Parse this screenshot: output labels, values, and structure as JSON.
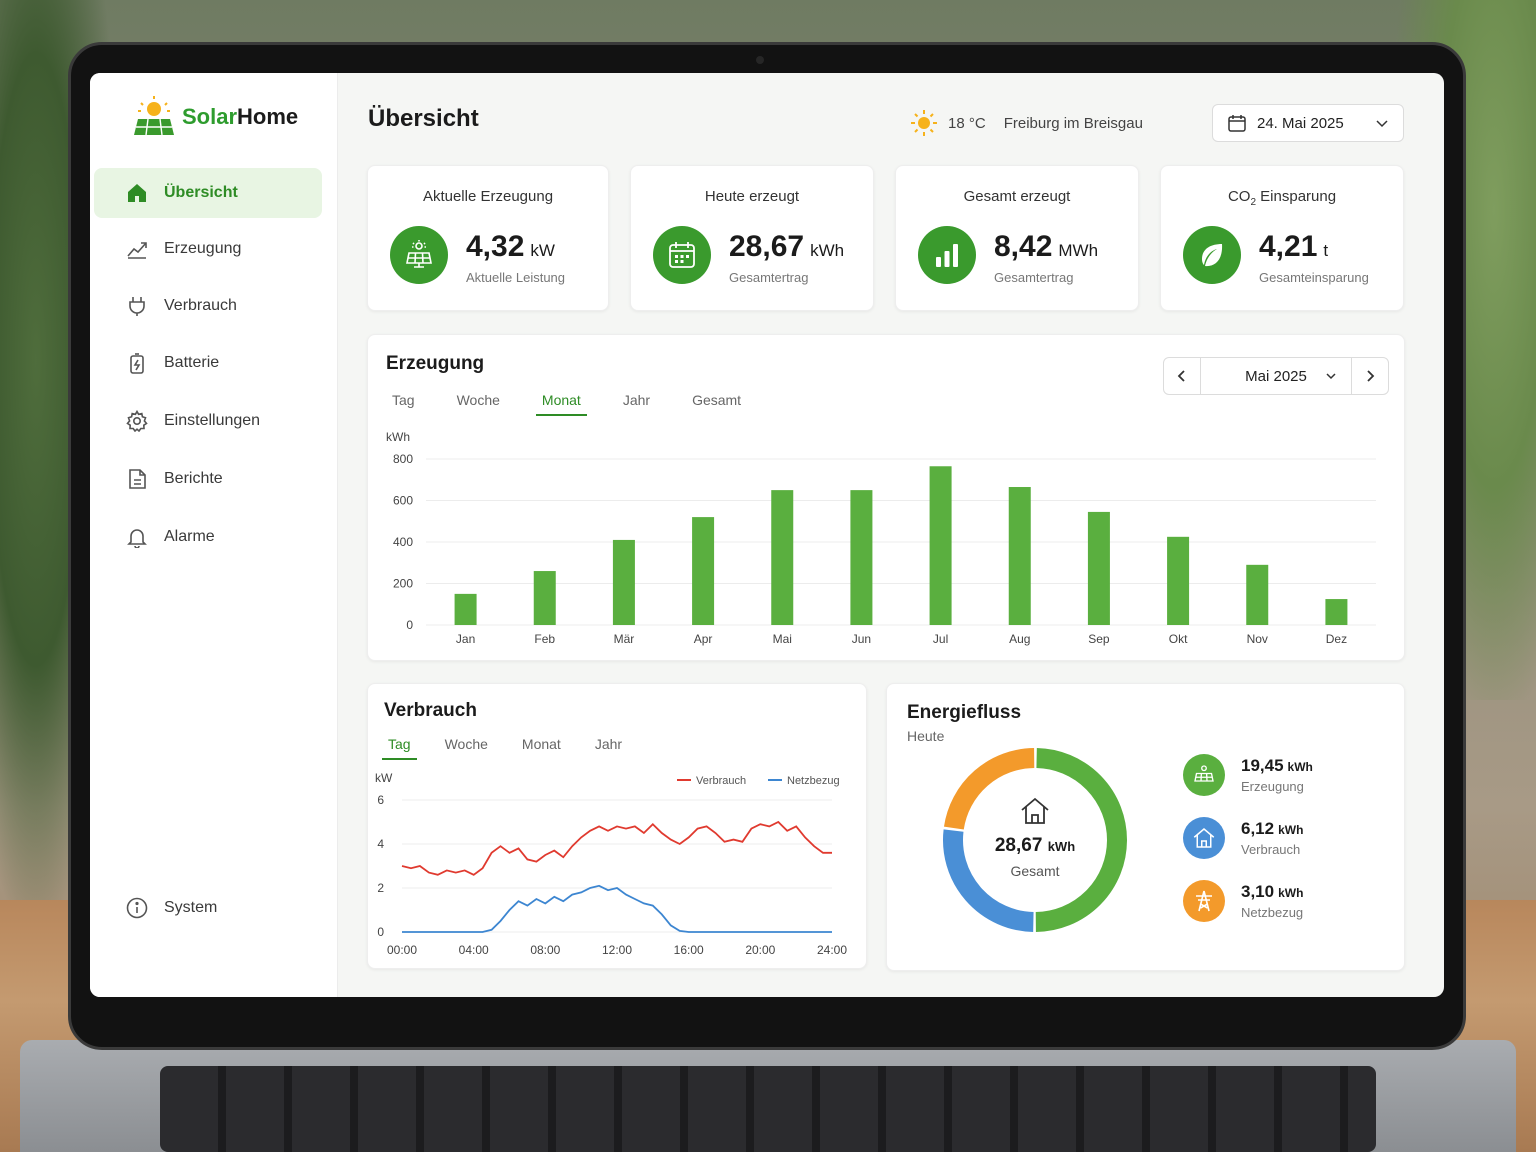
{
  "app": {
    "brand_a": "Solar",
    "brand_b": "Home"
  },
  "sidebar": {
    "items": [
      {
        "label": "Übersicht",
        "icon": "home-icon",
        "active": true
      },
      {
        "label": "Erzeugung",
        "icon": "chart-line-icon"
      },
      {
        "label": "Verbrauch",
        "icon": "plug-icon"
      },
      {
        "label": "Batterie",
        "icon": "battery-icon"
      },
      {
        "label": "Einstellungen",
        "icon": "gear-icon"
      },
      {
        "label": "Berichte",
        "icon": "document-icon"
      },
      {
        "label": "Alarme",
        "icon": "bell-icon"
      }
    ],
    "system_label": "System"
  },
  "header": {
    "title": "Übersicht",
    "temperature": "18 °C",
    "location": "Freiburg im Breisgau",
    "date": "24. Mai 2025"
  },
  "kpis": [
    {
      "title": "Aktuelle Erzeugung",
      "value": "4,32",
      "unit": "kW",
      "sub": "Aktuelle Leistung",
      "icon": "solar-panel-icon"
    },
    {
      "title": "Heute erzeugt",
      "value": "28,67",
      "unit": "kWh",
      "sub": "Gesamtertrag",
      "icon": "calendar-icon"
    },
    {
      "title": "Gesamt erzeugt",
      "value": "8,42",
      "unit": "MWh",
      "sub": "Gesamtertrag",
      "icon": "bar-chart-icon"
    },
    {
      "title_main": "CO",
      "title_sub": "2",
      "title_rest": " Einsparung",
      "value": "4,21",
      "unit": "t",
      "sub": "Gesamteinsparung",
      "icon": "leaf-icon"
    }
  ],
  "production": {
    "title": "Erzeugung",
    "tabs": [
      "Tag",
      "Woche",
      "Monat",
      "Jahr",
      "Gesamt"
    ],
    "active_tab": "Monat",
    "period": "Mai 2025"
  },
  "consumption": {
    "title": "Verbrauch",
    "tabs": [
      "Tag",
      "Woche",
      "Monat",
      "Jahr"
    ],
    "active_tab": "Tag"
  },
  "energyflow": {
    "title": "Energiefluss",
    "subtitle": "Heute",
    "center_value": "28,67",
    "center_unit": "kWh",
    "center_label": "Gesamt",
    "items": [
      {
        "value": "19,45",
        "unit": "kWh",
        "label": "Erzeugung",
        "color": "#5aaf3f",
        "icon": "solar-panel-icon",
        "share": 0.5
      },
      {
        "value": "6,12",
        "unit": "kWh",
        "label": "Verbrauch",
        "color": "#4a8fd6",
        "icon": "house-icon",
        "share": 0.27
      },
      {
        "value": "3,10",
        "unit": "kWh",
        "label": "Netzbezug",
        "color": "#f39a2b",
        "icon": "power-tower-icon",
        "share": 0.23
      }
    ]
  },
  "chart_data": [
    {
      "type": "bar",
      "ylabel": "kWh",
      "ylim": [
        0,
        800
      ],
      "yticks": [
        0,
        200,
        400,
        600,
        800
      ],
      "categories": [
        "Jan",
        "Feb",
        "Mär",
        "Apr",
        "Mai",
        "Jun",
        "Jul",
        "Aug",
        "Sep",
        "Okt",
        "Nov",
        "Dez"
      ],
      "values": [
        150,
        260,
        410,
        520,
        650,
        650,
        765,
        665,
        545,
        425,
        290,
        125
      ],
      "color": "#5aaf3f",
      "grid": true
    },
    {
      "type": "line",
      "ylabel": "kW",
      "ylim": [
        0,
        6
      ],
      "yticks": [
        0,
        2,
        4,
        6
      ],
      "xticks": [
        "00:00",
        "04:00",
        "08:00",
        "12:00",
        "16:00",
        "20:00",
        "24:00"
      ],
      "x": [
        0,
        0.5,
        1,
        1.5,
        2,
        2.5,
        3,
        3.5,
        4,
        4.5,
        5,
        5.5,
        6,
        6.5,
        7,
        7.5,
        8,
        8.5,
        9,
        9.5,
        10,
        10.5,
        11,
        11.5,
        12,
        12.5,
        13,
        13.5,
        14,
        14.5,
        15,
        15.5,
        16,
        16.5,
        17,
        17.5,
        18,
        18.5,
        19,
        19.5,
        20,
        20.5,
        21,
        21.5,
        22,
        22.5,
        23,
        23.5,
        24
      ],
      "series": [
        {
          "name": "Verbrauch",
          "color": "#e03a2f",
          "values": [
            3.0,
            2.9,
            3.0,
            2.7,
            2.6,
            2.8,
            2.7,
            2.8,
            2.6,
            2.9,
            3.6,
            3.9,
            3.6,
            3.8,
            3.3,
            3.2,
            3.5,
            3.7,
            3.4,
            3.9,
            4.3,
            4.6,
            4.8,
            4.6,
            4.8,
            4.7,
            4.8,
            4.5,
            4.9,
            4.5,
            4.2,
            4.0,
            4.3,
            4.7,
            4.8,
            4.5,
            4.1,
            4.2,
            4.1,
            4.7,
            4.9,
            4.8,
            5.0,
            4.6,
            4.8,
            4.3,
            3.9,
            3.6,
            3.6
          ]
        },
        {
          "name": "Netzbezug",
          "color": "#3d86d1",
          "values": [
            0,
            0,
            0,
            0,
            0,
            0,
            0,
            0,
            0,
            0,
            0.1,
            0.5,
            1.0,
            1.4,
            1.2,
            1.5,
            1.3,
            1.6,
            1.4,
            1.7,
            1.8,
            2.0,
            2.1,
            1.9,
            2.0,
            1.7,
            1.5,
            1.3,
            1.2,
            0.8,
            0.3,
            0.05,
            0,
            0,
            0,
            0,
            0,
            0,
            0,
            0,
            0,
            0,
            0,
            0,
            0,
            0,
            0,
            0,
            0
          ]
        }
      ]
    }
  ]
}
